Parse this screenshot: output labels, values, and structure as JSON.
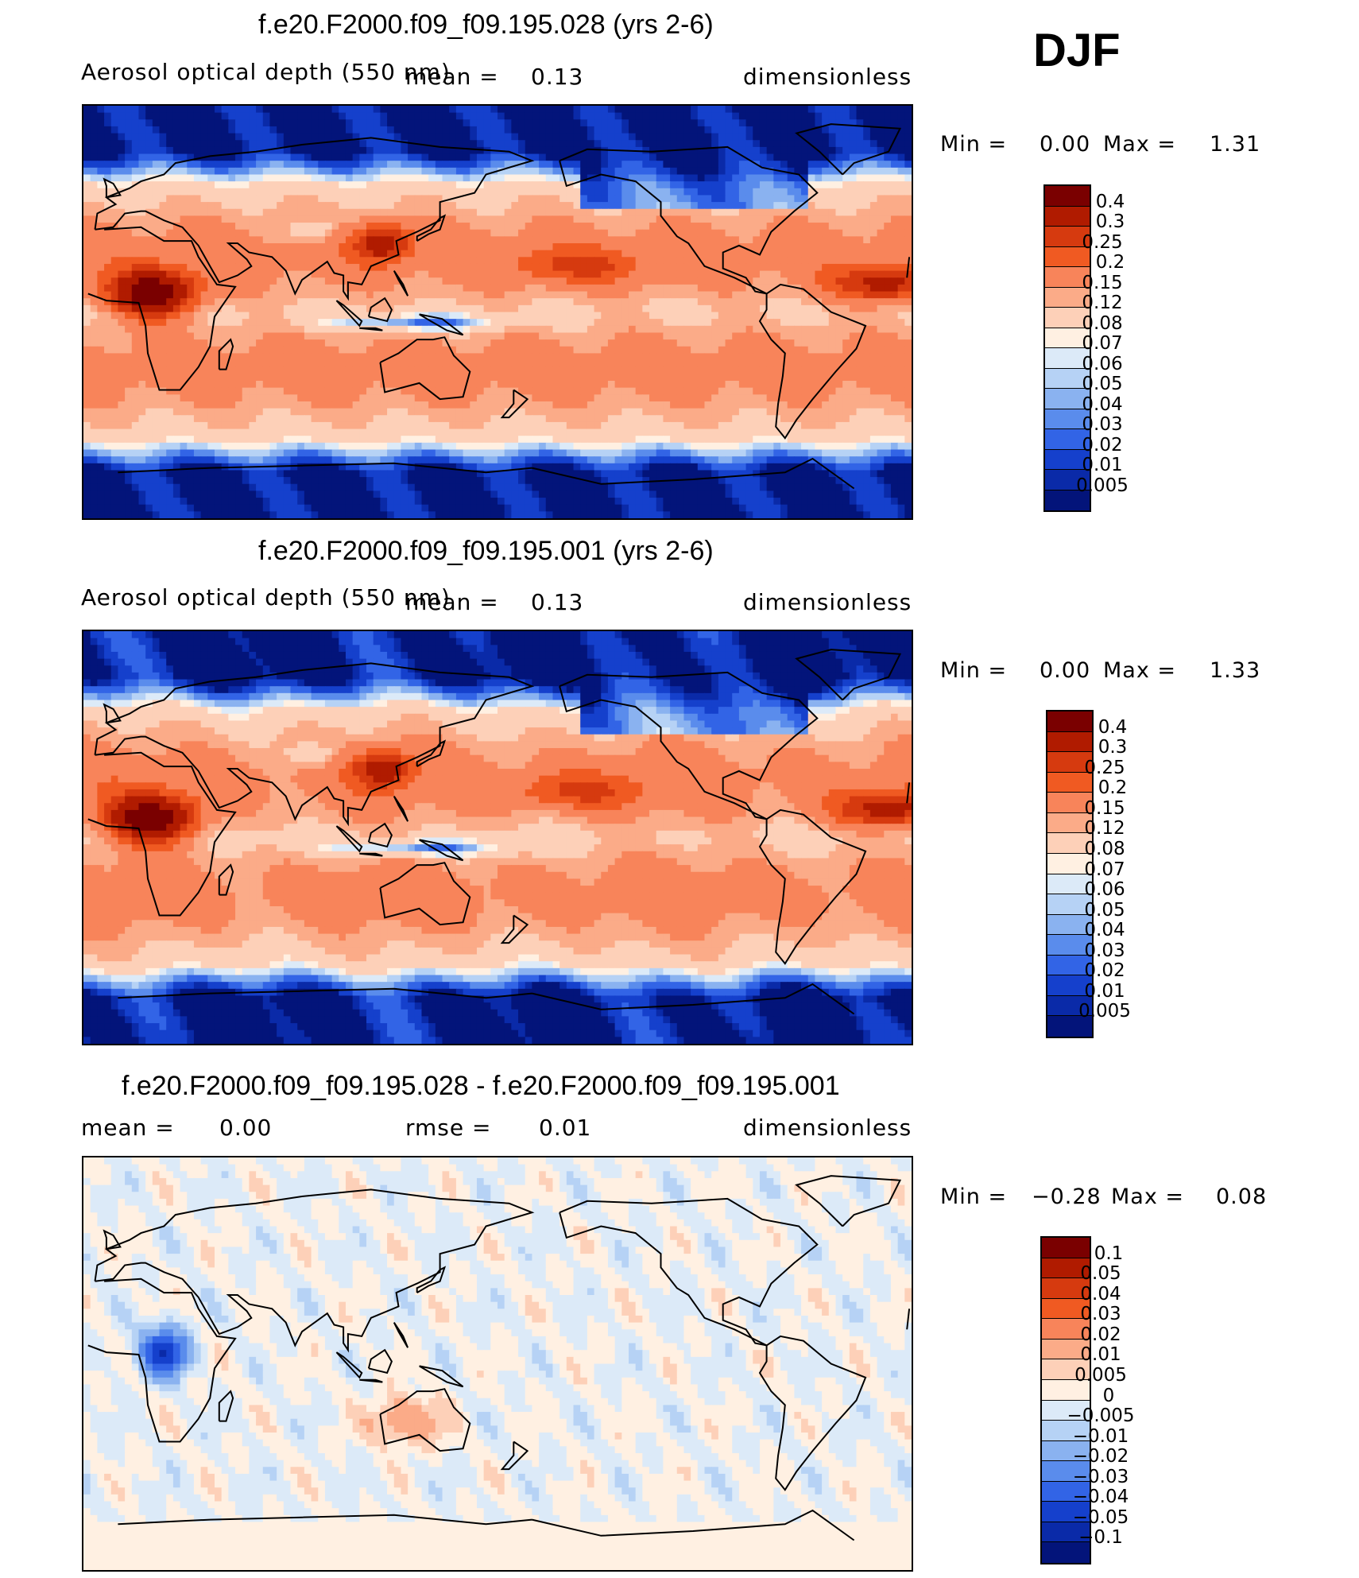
{
  "season": "DJF",
  "chart_data": [
    {
      "type": "heatmap",
      "title": "f.e20.F2000.f09_f09.195.028 (yrs 2-6)",
      "variable": "Aerosol optical depth (550 nm)",
      "stat_label": "mean =",
      "stat_value": "0.13",
      "units": "dimensionless",
      "min_label": "Min =",
      "min": "0.00",
      "max_label": "Max =",
      "max": "1.31",
      "colorbar_levels": [
        "0.4",
        "0.3",
        "0.25",
        "0.2",
        "0.15",
        "0.12",
        "0.08",
        "0.07",
        "0.06",
        "0.05",
        "0.04",
        "0.03",
        "0.02",
        "0.01",
        "0.005"
      ],
      "colorbar_colors": [
        "#7a0000",
        "#b01b00",
        "#d63a0f",
        "#f05a22",
        "#f8845a",
        "#fbab88",
        "#fdd0b8",
        "#fff0e2",
        "#dceaf8",
        "#b6d2f5",
        "#8ab2f0",
        "#5a8cec",
        "#3264e6",
        "#1540cc",
        "#0a2aa8",
        "#03147a"
      ]
    },
    {
      "type": "heatmap",
      "title": "f.e20.F2000.f09_f09.195.001 (yrs 2-6)",
      "variable": "Aerosol optical depth (550 nm)",
      "stat_label": "mean =",
      "stat_value": "0.13",
      "units": "dimensionless",
      "min_label": "Min =",
      "min": "0.00",
      "max_label": "Max =",
      "max": "1.33",
      "colorbar_levels": [
        "0.4",
        "0.3",
        "0.25",
        "0.2",
        "0.15",
        "0.12",
        "0.08",
        "0.07",
        "0.06",
        "0.05",
        "0.04",
        "0.03",
        "0.02",
        "0.01",
        "0.005"
      ],
      "colorbar_colors": [
        "#7a0000",
        "#b01b00",
        "#d63a0f",
        "#f05a22",
        "#f8845a",
        "#fbab88",
        "#fdd0b8",
        "#fff0e2",
        "#dceaf8",
        "#b6d2f5",
        "#8ab2f0",
        "#5a8cec",
        "#3264e6",
        "#1540cc",
        "#0a2aa8",
        "#03147a"
      ]
    },
    {
      "type": "heatmap",
      "title": "f.e20.F2000.f09_f09.195.028 - f.e20.F2000.f09_f09.195.001",
      "stat_label": "mean =",
      "stat_value": "0.00",
      "rmse_label": "rmse =",
      "rmse_value": "0.01",
      "units": "dimensionless",
      "min_label": "Min =",
      "min": "−0.28",
      "max_label": "Max =",
      "max": "0.08",
      "colorbar_levels": [
        "0.1",
        "0.05",
        "0.04",
        "0.03",
        "0.02",
        "0.01",
        "0.005",
        "0",
        "−0.005",
        "−0.01",
        "−0.02",
        "−0.03",
        "−0.04",
        "−0.05",
        "−0.1"
      ],
      "colorbar_colors": [
        "#7a0000",
        "#b01b00",
        "#d63a0f",
        "#f05a22",
        "#f8845a",
        "#fbab88",
        "#fdd0b8",
        "#fff0e2",
        "#dceaf8",
        "#b6d2f5",
        "#8ab2f0",
        "#5a8cec",
        "#3264e6",
        "#1540cc",
        "#0a2aa8",
        "#03147a"
      ]
    }
  ]
}
